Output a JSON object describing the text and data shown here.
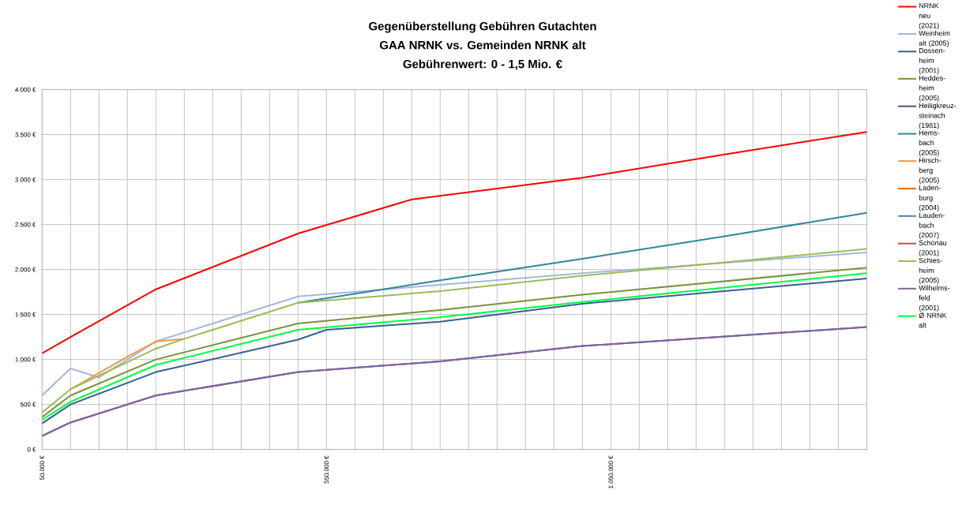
{
  "chart_data": {
    "type": "line",
    "title": "Gegenüberstellung Gebühren Gutachten",
    "subtitle": "GAA NRNK vs. Gemeinden NRNK alt",
    "annotations": [
      "Gebührenwert: 0 - 1,5 Mio. €"
    ],
    "xlim": [
      50000,
      1500000
    ],
    "xticks": [
      {
        "value": 50000,
        "label": "50.000 €"
      },
      {
        "value": 100000,
        "label": null
      },
      {
        "value": 150000,
        "label": null
      },
      {
        "value": 200000,
        "label": null
      },
      {
        "value": 250000,
        "label": null
      },
      {
        "value": 300000,
        "label": null
      },
      {
        "value": 350000,
        "label": null
      },
      {
        "value": 400000,
        "label": null
      },
      {
        "value": 450000,
        "label": null
      },
      {
        "value": 500000,
        "label": null
      },
      {
        "value": 550000,
        "label": "550.000 €"
      },
      {
        "value": 600000,
        "label": null
      },
      {
        "value": 650000,
        "label": null
      },
      {
        "value": 700000,
        "label": null
      },
      {
        "value": 750000,
        "label": null
      },
      {
        "value": 800000,
        "label": null
      },
      {
        "value": 850000,
        "label": null
      },
      {
        "value": 900000,
        "label": null
      },
      {
        "value": 950000,
        "label": null
      },
      {
        "value": 1000000,
        "label": null
      },
      {
        "value": 1050000,
        "label": "1.050.000 €"
      },
      {
        "value": 1100000,
        "label": null
      },
      {
        "value": 1150000,
        "label": null
      },
      {
        "value": 1200000,
        "label": null
      },
      {
        "value": 1250000,
        "label": null
      },
      {
        "value": 1300000,
        "label": null
      },
      {
        "value": 1350000,
        "label": null
      },
      {
        "value": 1400000,
        "label": null
      },
      {
        "value": 1450000,
        "label": null
      },
      {
        "value": 1500000,
        "label": null
      }
    ],
    "ylim": [
      0,
      4000
    ],
    "yticks": [
      {
        "value": 0,
        "label": "0 €"
      },
      {
        "value": 500,
        "label": "500 €"
      },
      {
        "value": 1000,
        "label": "1.000 €"
      },
      {
        "value": 1500,
        "label": "1.500 €"
      },
      {
        "value": 2000,
        "label": "2.000 €"
      },
      {
        "value": 2500,
        "label": "2.500 €"
      },
      {
        "value": 3000,
        "label": "3.000 €"
      },
      {
        "value": 3500,
        "label": "3.500 €"
      },
      {
        "value": 4000,
        "label": "4.000 €"
      }
    ],
    "grid": true,
    "legend": "right",
    "marker": "none",
    "line_style": "solid",
    "series": [
      {
        "name": "NRNK neu (2021)",
        "color": "#ff0000",
        "x": [
          50000,
          100000,
          250000,
          500000,
          700000,
          1000000,
          1250000,
          1500000
        ],
        "values": [
          1070,
          1250,
          1780,
          2400,
          2780,
          3020,
          3280,
          3530
        ]
      },
      {
        "name": "Weinheim alt (2005)",
        "color": "#a5b8da",
        "x": [
          50000,
          100000,
          150000,
          250000,
          500000,
          1000000,
          1500000
        ],
        "values": [
          600,
          900,
          800,
          1200,
          1700,
          1960,
          2190
        ]
      },
      {
        "name": "Dossen-heim (2001)",
        "color": "#376092",
        "x": [
          50000,
          100000,
          250000,
          500000,
          550000,
          750000,
          1000000,
          1500000
        ],
        "values": [
          290,
          500,
          860,
          1220,
          1330,
          1420,
          1620,
          1900
        ]
      },
      {
        "name": "Heddes-heim (2005)",
        "color": "#77933c",
        "x": [
          50000,
          100000,
          250000,
          500000,
          750000,
          1000000,
          1500000
        ],
        "values": [
          360,
          600,
          1000,
          1400,
          1550,
          1720,
          2020
        ]
      },
      {
        "name": "Heiligkreuz-steinach (1981)",
        "color": "#604a7b",
        "x": [
          50000,
          100000,
          250000,
          500000,
          750000,
          1000000,
          1500000
        ],
        "values": [
          150,
          300,
          600,
          860,
          980,
          1150,
          1360
        ]
      },
      {
        "name": "Hems-bach (2005)",
        "color": "#31859c",
        "x": [
          500000,
          750000,
          1000000,
          1250000,
          1500000
        ],
        "values": [
          1630,
          1880,
          2120,
          2370,
          2630
        ]
      },
      {
        "name": "Hirsch-berg (2005)",
        "color": "#f79646",
        "x": [
          100000,
          150000,
          200000,
          250000,
          300000
        ],
        "values": [
          670,
          850,
          1030,
          1200,
          1230
        ]
      },
      {
        "name": "Laden-burg (2004)",
        "color": "#e46c0a"
      },
      {
        "name": "Lauden-bach (2007)",
        "color": "#4f81bd"
      },
      {
        "name": "Schönau (2001)",
        "color": "#c0504d"
      },
      {
        "name": "Schies-heim (2005)",
        "color": "#9bbb59",
        "x": [
          50000,
          100000,
          250000,
          300000,
          500000,
          750000,
          1000000,
          1500000
        ],
        "values": [
          410,
          670,
          1120,
          1230,
          1630,
          1760,
          1930,
          2230
        ]
      },
      {
        "name": "Wilhelms-feld (2001)",
        "color": "#8064a2",
        "x": [
          50000,
          100000,
          250000,
          500000,
          750000,
          1000000,
          1500000
        ],
        "values": [
          150,
          300,
          600,
          860,
          980,
          1150,
          1360
        ]
      },
      {
        "name": "Ø NRNK alt",
        "color": "#00ff40",
        "x": [
          50000,
          100000,
          250000,
          500000,
          750000,
          1000000,
          1500000
        ],
        "values": [
          330,
          530,
          940,
          1330,
          1470,
          1640,
          1960
        ]
      }
    ]
  }
}
